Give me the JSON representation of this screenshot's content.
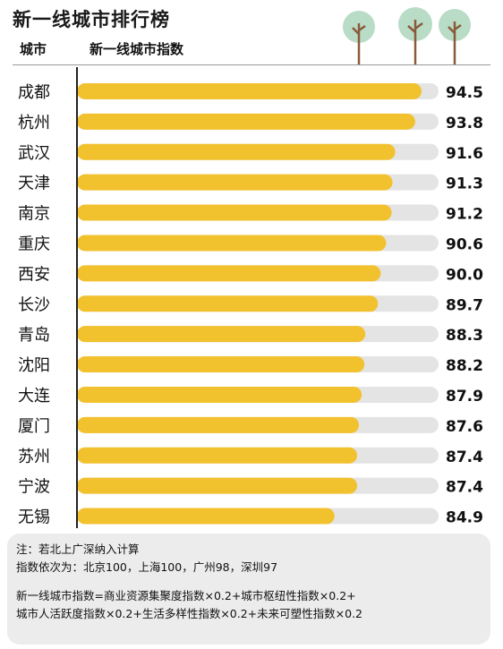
{
  "header": {
    "title": "新一线城市排行榜",
    "col_city": "城市",
    "col_index": "新一线城市指数"
  },
  "colors": {
    "bar": "#f2c12e",
    "track": "#e4e4e4",
    "axis": "#222222",
    "note_bg": "#ececec",
    "tree_canopy": "#b9dcc6",
    "tree_trunk": "#8a5a3a"
  },
  "icons": [
    "tree-icon",
    "tree-icon",
    "tree-icon"
  ],
  "chart_data": {
    "type": "bar",
    "orientation": "horizontal",
    "categories": [
      "成都",
      "杭州",
      "武汉",
      "天津",
      "南京",
      "重庆",
      "西安",
      "长沙",
      "青岛",
      "沈阳",
      "大连",
      "厦门",
      "苏州",
      "宁波",
      "无锡"
    ],
    "values": [
      94.5,
      93.8,
      91.6,
      91.3,
      91.2,
      90.6,
      90.0,
      89.7,
      88.3,
      88.2,
      87.9,
      87.6,
      87.4,
      87.4,
      84.9
    ],
    "value_labels": [
      "94.5",
      "93.8",
      "91.6",
      "91.3",
      "91.2",
      "90.6",
      "90.0",
      "89.7",
      "88.3",
      "88.2",
      "87.9",
      "87.6",
      "87.4",
      "87.4",
      "84.9"
    ],
    "title": "新一线城市排行榜",
    "xlabel": "",
    "ylabel": "",
    "grid": false
  },
  "notes": {
    "line1": "注：若北上广深纳入计算",
    "line2": "指数依次为：北京100，上海100，广州98，深圳97",
    "line3": "新一线城市指数=商业资源集聚度指数×0.2+城市枢纽性指数×0.2+",
    "line4": "城市人活跃度指数×0.2+生活多样性指数×0.2+未来可塑性指数×0.2"
  }
}
